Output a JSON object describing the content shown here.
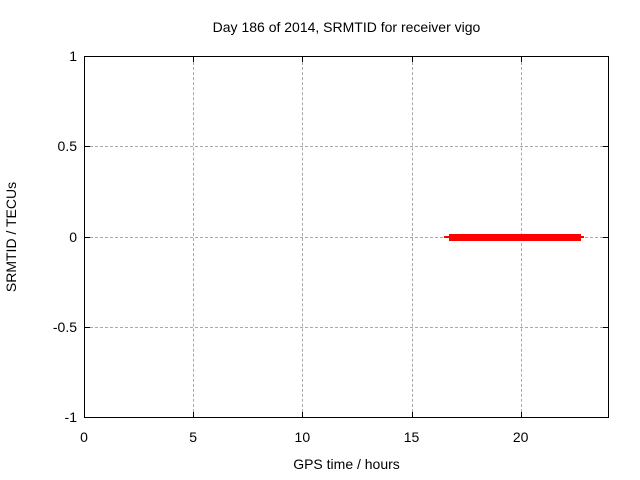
{
  "chart_data": {
    "type": "line",
    "title": "Day 186 of 2014, SRMTID for receiver vigo",
    "xlabel": "GPS time / hours",
    "ylabel": "SRMTID / TECUs",
    "xlim": [
      0,
      24
    ],
    "ylim": [
      -1,
      1
    ],
    "xticks": [
      0,
      5,
      10,
      15,
      20
    ],
    "yticks": [
      -1,
      -0.5,
      0,
      0.5,
      1
    ],
    "xtick_labels": [
      "0",
      "5",
      "10",
      "15",
      "20"
    ],
    "ytick_labels": [
      "-1",
      "-0.5",
      "0",
      "0.5",
      "1"
    ],
    "grid": "dashed, at every major tick",
    "grid_color": "#a9a9a9",
    "legend": "none",
    "series": [
      {
        "name": "SRMTID",
        "color": "#ff0000",
        "style": "thick horizontal segment with thin end caps",
        "segments": [
          {
            "y": 0,
            "x_start": 16.5,
            "x_end": 22.9,
            "core_x_start": 16.7,
            "core_x_end": 22.78,
            "core_thickness_px": 7,
            "cap_thickness_px": 2
          }
        ]
      }
    ]
  },
  "colors": {
    "background": "#ffffff",
    "plot_border": "#000000",
    "text": "#000000",
    "grid": "#a9a9a9",
    "series_red": "#ff0000"
  }
}
